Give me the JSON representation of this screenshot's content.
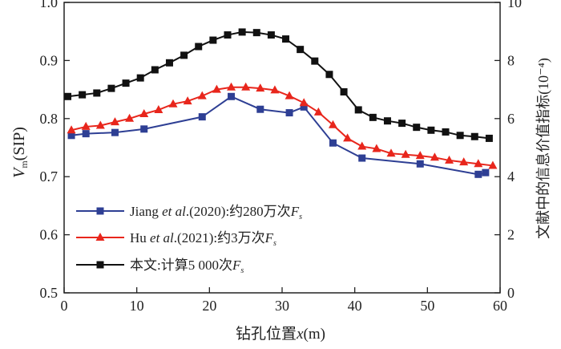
{
  "chart_data": {
    "type": "line",
    "title": "",
    "xlabel": "钻孔位置x(m)",
    "xlabel_parts": {
      "prefix": "钻孔位置",
      "var": "x",
      "suffix": "(m)"
    },
    "ylabel": "Vm(SIP)",
    "ylabel_parts": {
      "var": "V",
      "sub": "m",
      "suffix": "(SIP)"
    },
    "y2label": "文献中的信息价值指标(10⁻⁴)",
    "xlim": [
      0,
      60
    ],
    "ylim": [
      0.5,
      1.0
    ],
    "y2lim": [
      0,
      10
    ],
    "xticks": [
      "0",
      "10",
      "20",
      "30",
      "40",
      "50",
      "60"
    ],
    "yticks": [
      "0.5",
      "0.6",
      "0.7",
      "0.8",
      "0.9",
      "1.0"
    ],
    "y2ticks": [
      "0",
      "2",
      "4",
      "6",
      "8",
      "10"
    ],
    "legend_position": "bottom-left",
    "series": [
      {
        "name": "Jiang et al.(2020):约280万次Fs",
        "legend": {
          "a": "Jiang ",
          "it": "et al",
          "b": ".(2020):约280万次",
          "f": "F",
          "s": "s"
        },
        "color": "#2e3f94",
        "marker": "square",
        "x": [
          1,
          3,
          7,
          11,
          19,
          23,
          27,
          31,
          33,
          37,
          41,
          49,
          57,
          58
        ],
        "y": [
          0.771,
          0.774,
          0.776,
          0.782,
          0.803,
          0.838,
          0.816,
          0.81,
          0.82,
          0.758,
          0.732,
          0.722,
          0.704,
          0.707
        ]
      },
      {
        "name": "Hu et al.(2021):约3万次Fs",
        "legend": {
          "a": "Hu ",
          "it": "et al",
          "b": ".(2021):约3万次",
          "f": "F",
          "s": "s"
        },
        "color": "#e8261c",
        "marker": "triangle",
        "x": [
          1,
          3,
          5,
          7,
          9,
          11,
          13,
          15,
          17,
          19,
          21,
          23,
          25,
          27,
          29,
          31,
          33,
          35,
          37,
          39,
          41,
          43,
          45,
          47,
          49,
          51,
          53,
          55,
          57,
          59
        ],
        "y": [
          0.78,
          0.786,
          0.788,
          0.794,
          0.8,
          0.808,
          0.815,
          0.825,
          0.83,
          0.839,
          0.85,
          0.854,
          0.854,
          0.852,
          0.849,
          0.839,
          0.827,
          0.811,
          0.789,
          0.766,
          0.752,
          0.748,
          0.74,
          0.738,
          0.736,
          0.733,
          0.728,
          0.725,
          0.722,
          0.719
        ]
      },
      {
        "name": "本文:计算5 000次Fs",
        "legend": {
          "a": "本文:计算5 000次",
          "it": "",
          "b": "",
          "f": "F",
          "s": "s"
        },
        "color": "#111111",
        "marker": "square",
        "x": [
          0.5,
          2.5,
          4.5,
          6.5,
          8.5,
          10.5,
          12.5,
          14.5,
          16.5,
          18.5,
          20.5,
          22.5,
          24.5,
          26.5,
          28.5,
          30.5,
          32.5,
          34.5,
          36.5,
          38.5,
          40.5,
          42.5,
          44.5,
          46.5,
          48.5,
          50.5,
          52.5,
          54.5,
          56.5,
          58.5
        ],
        "y": [
          0.838,
          0.841,
          0.844,
          0.852,
          0.861,
          0.87,
          0.884,
          0.896,
          0.909,
          0.924,
          0.935,
          0.944,
          0.949,
          0.948,
          0.944,
          0.937,
          0.919,
          0.899,
          0.876,
          0.846,
          0.815,
          0.802,
          0.796,
          0.792,
          0.785,
          0.78,
          0.777,
          0.771,
          0.769,
          0.766
        ]
      }
    ]
  }
}
